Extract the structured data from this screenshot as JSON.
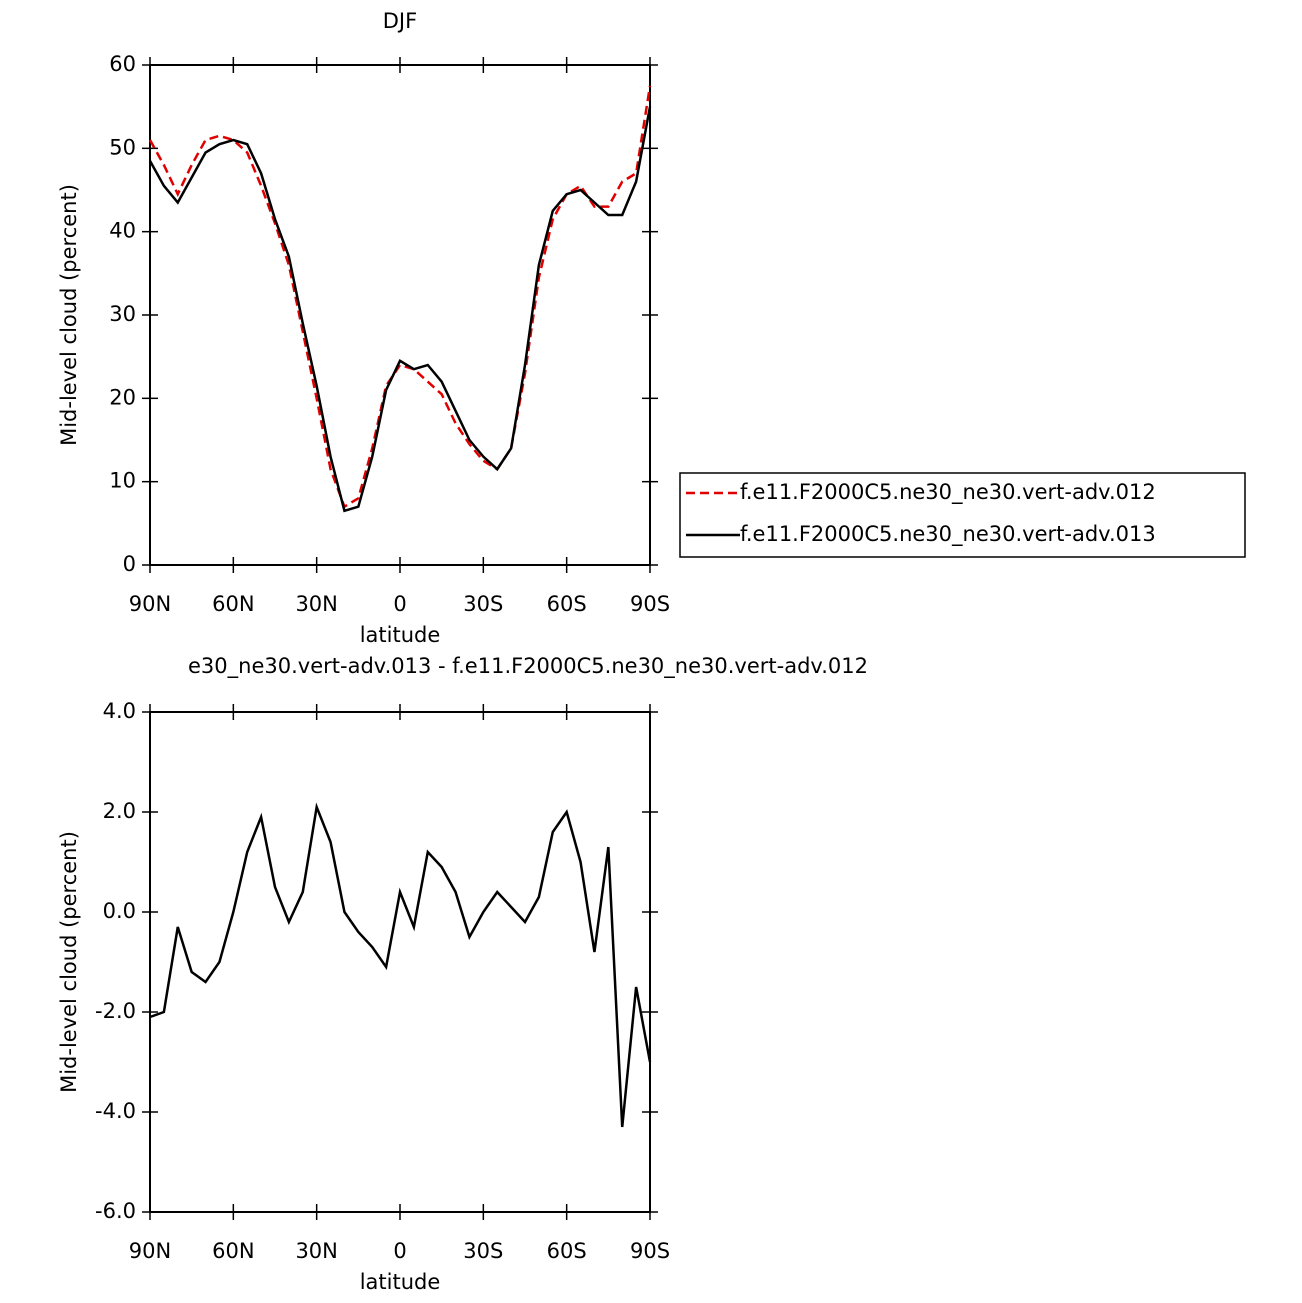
{
  "chart_data": [
    {
      "type": "line",
      "title": "DJF",
      "xlabel": "latitude",
      "ylabel": "Mid-level cloud (percent)",
      "x": [
        90,
        85,
        80,
        75,
        70,
        65,
        60,
        55,
        50,
        45,
        40,
        35,
        30,
        25,
        20,
        15,
        10,
        5,
        0,
        -5,
        -10,
        -15,
        -20,
        -25,
        -30,
        -35,
        -40,
        -45,
        -50,
        -55,
        -60,
        -65,
        -70,
        -75,
        -80,
        -85,
        -90
      ],
      "xlim": [
        90,
        -90
      ],
      "xticks": [
        {
          "value": 90,
          "label": "90N"
        },
        {
          "value": 60,
          "label": "60N"
        },
        {
          "value": 30,
          "label": "30N"
        },
        0,
        {
          "value": -30,
          "label": "30S"
        },
        {
          "value": -60,
          "label": "60S"
        },
        {
          "value": -90,
          "label": "90S"
        }
      ],
      "ylim": [
        0,
        60
      ],
      "yticks": [
        0,
        10,
        20,
        30,
        40,
        50,
        60
      ],
      "legend": "right",
      "series": [
        {
          "name": "f.e11.F2000C5.ne30_ne30.vert-adv.012",
          "color": "#e00000",
          "dash": true,
          "values": [
            51,
            48,
            44.5,
            48,
            51,
            51.5,
            51,
            49.5,
            45.5,
            41,
            36,
            28,
            20,
            11.5,
            7,
            8,
            14,
            21.5,
            24,
            23.5,
            22,
            20.5,
            17,
            14.5,
            12.5,
            11.5,
            14,
            23,
            34.5,
            41.5,
            44.5,
            45.5,
            43,
            43,
            46,
            47,
            57.5
          ]
        },
        {
          "name": "f.e11.F2000C5.ne30_ne30.vert-adv.013",
          "color": "#000000",
          "dash": false,
          "values": [
            48.5,
            45.5,
            43.5,
            46.5,
            49.5,
            50.5,
            51,
            50.5,
            47,
            41.5,
            37,
            29,
            21.5,
            13,
            6.5,
            7,
            13,
            21,
            24.5,
            23.5,
            24,
            22,
            18.5,
            15,
            13,
            11.5,
            14,
            24,
            36,
            42.5,
            44.5,
            45,
            43.5,
            42,
            42,
            46,
            55
          ]
        }
      ]
    },
    {
      "type": "line",
      "title": "e30_ne30.vert-adv.013 - f.e11.F2000C5.ne30_ne30.vert-adv.012",
      "xlabel": "latitude",
      "ylabel": "Mid-level cloud (percent)",
      "x": [
        90,
        85,
        80,
        75,
        70,
        65,
        60,
        55,
        50,
        45,
        40,
        35,
        30,
        25,
        20,
        15,
        10,
        5,
        0,
        -5,
        -10,
        -15,
        -20,
        -25,
        -30,
        -35,
        -40,
        -45,
        -50,
        -55,
        -60,
        -65,
        -70,
        -75,
        -80,
        -85,
        -90
      ],
      "xlim": [
        90,
        -90
      ],
      "xticks": [
        {
          "value": 90,
          "label": "90N"
        },
        {
          "value": 60,
          "label": "60N"
        },
        {
          "value": 30,
          "label": "30N"
        },
        0,
        {
          "value": -30,
          "label": "30S"
        },
        {
          "value": -60,
          "label": "60S"
        },
        {
          "value": -90,
          "label": "90S"
        }
      ],
      "ylim": [
        -6,
        4
      ],
      "yticks": [
        {
          "value": -6,
          "label": "-6.0"
        },
        {
          "value": -4,
          "label": "-4.0"
        },
        {
          "value": -2,
          "label": "-2.0"
        },
        {
          "value": 0,
          "label": "0.0"
        },
        {
          "value": 2,
          "label": "2.0"
        },
        {
          "value": 4,
          "label": "4.0"
        }
      ],
      "series": [
        {
          "color": "#000000",
          "dash": false,
          "values": [
            -2.1,
            -2.0,
            -0.3,
            -1.2,
            -1.4,
            -1.0,
            0.0,
            1.2,
            1.9,
            0.5,
            -0.2,
            0.4,
            2.1,
            1.4,
            0.0,
            -0.4,
            -0.7,
            -1.1,
            0.4,
            -0.3,
            1.2,
            0.9,
            0.4,
            -0.5,
            0.0,
            0.4,
            0.1,
            -0.2,
            0.3,
            1.6,
            2.0,
            1.0,
            -0.8,
            1.3,
            -4.3,
            -1.5,
            -3.0
          ]
        }
      ]
    }
  ]
}
